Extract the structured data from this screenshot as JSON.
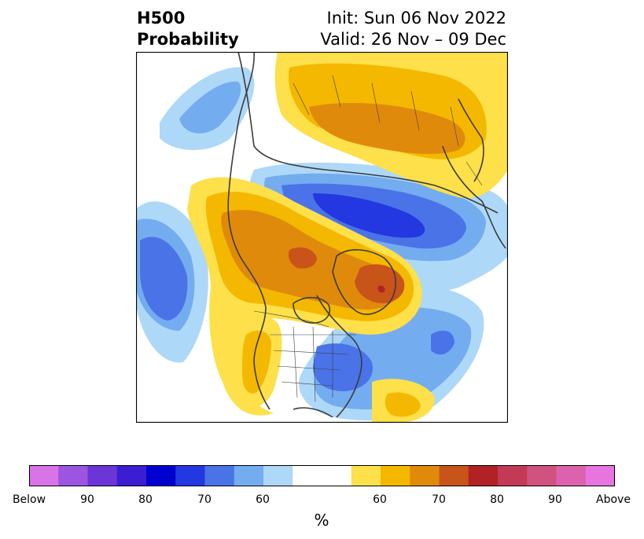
{
  "title": {
    "left_line1": "H500",
    "left_line2": "Probability",
    "right_line1": "Init: Sun 06 Nov 2022",
    "right_line2": "Valid: 26 Nov – 09 Dec"
  },
  "colorbar": {
    "unit": "%",
    "tick_labels": [
      "Below",
      "90",
      "80",
      "70",
      "60",
      "60",
      "70",
      "80",
      "90",
      "Above"
    ],
    "colors": [
      "#d874e8",
      "#9b55e0",
      "#6b35d8",
      "#3b1ed2",
      "#0000d0",
      "#2338e0",
      "#4a73e8",
      "#74acf0",
      "#aed8f8",
      "#ffffff",
      "#fde04a",
      "#f4b800",
      "#e08a0c",
      "#c8541a",
      "#b22224",
      "#c23a55",
      "#d0527e",
      "#dd62ae",
      "#e874e0"
    ]
  },
  "map": {
    "projection": "north-polar-stereographic",
    "field": "500 hPa height anomaly probability",
    "palette": {
      "blue1": "#aed8f8",
      "blue2": "#74acf0",
      "blue3": "#4a73e8",
      "blue4": "#2338e0",
      "yellow1": "#fde04a",
      "yellow2": "#f4b800",
      "orange": "#e08a0c",
      "rust": "#c8541a",
      "red": "#b22224",
      "coast": "#3c3c3c"
    }
  }
}
